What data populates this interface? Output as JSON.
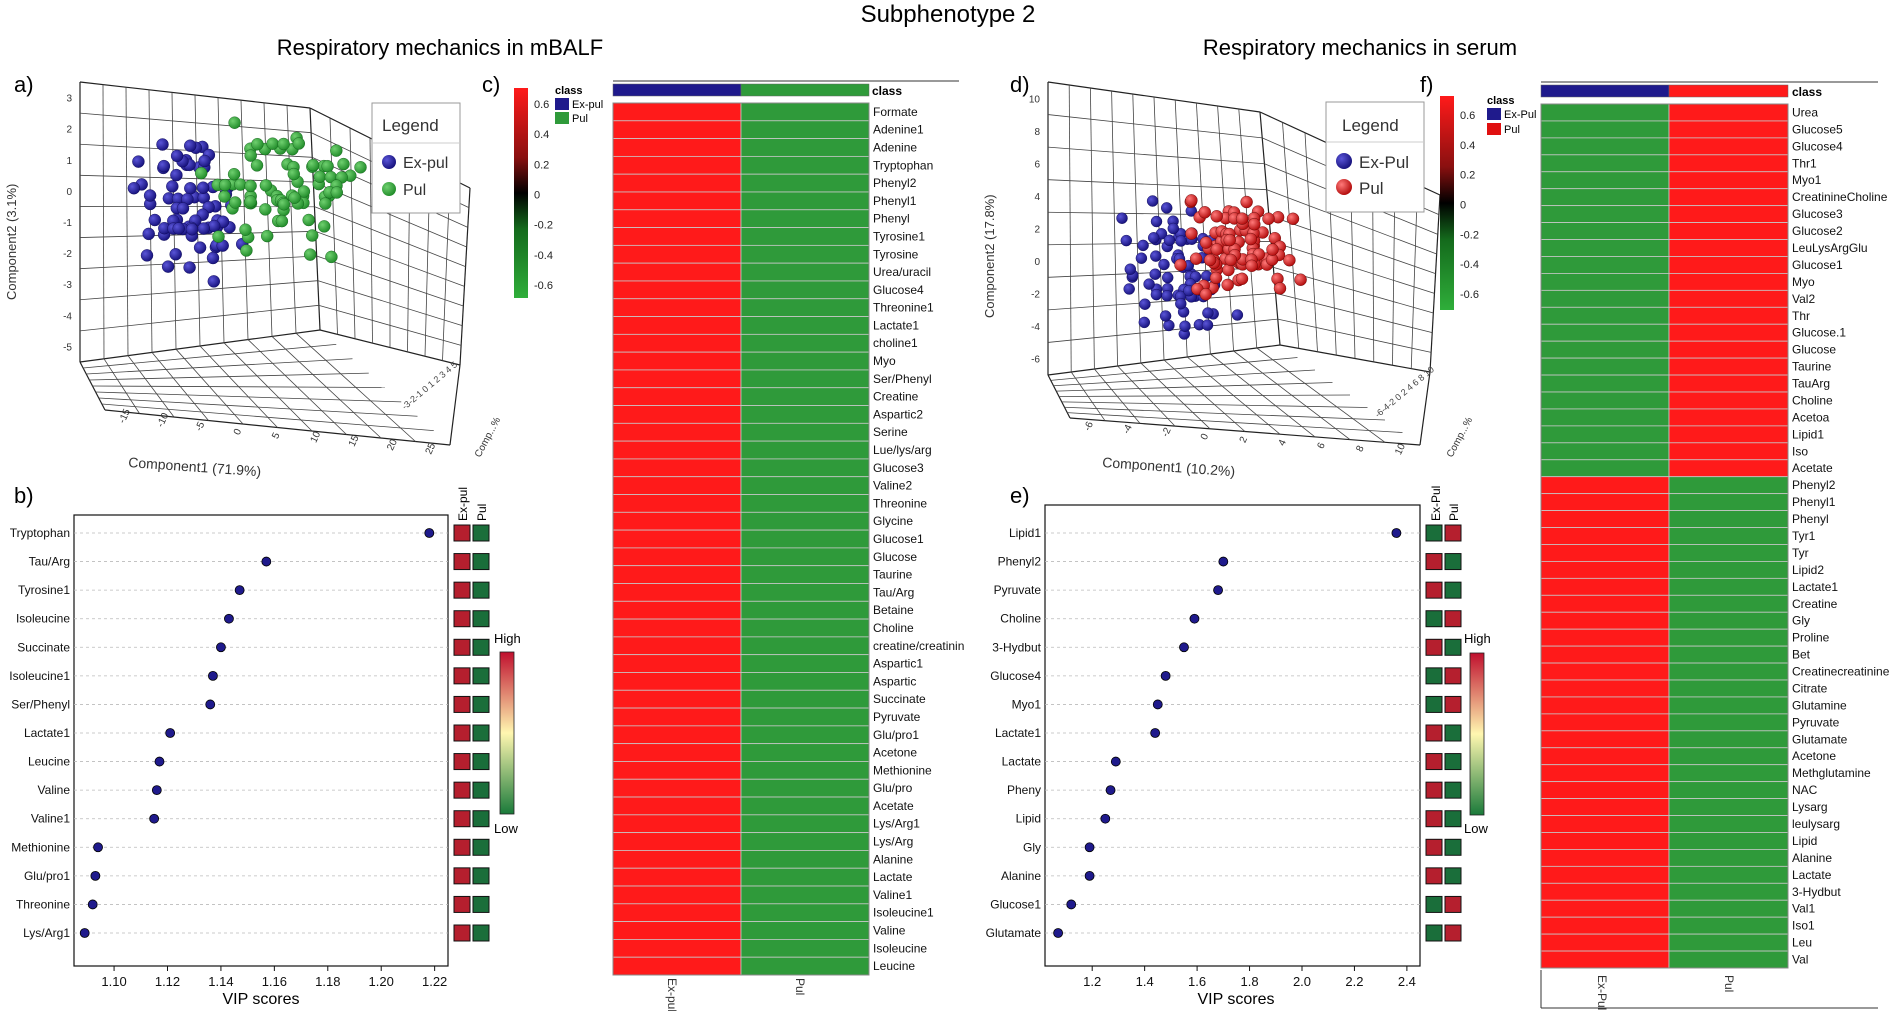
{
  "title": "Subphenotype 2",
  "section_left": "Respiratory mechanics in mBALF",
  "section_right": "Respiratory mechanics in serum",
  "panel_letters": [
    "a)",
    "b)",
    "c)",
    "d)",
    "e)",
    "f)"
  ],
  "colors": {
    "expul": "#1f1a8c",
    "pul_green": "#2a9d34",
    "pul_red": "#e01010",
    "heat_red": "#ff1a1a",
    "heat_green": "#2f9a3a",
    "box_red": "#b51f2e",
    "box_green": "#1a6e3a"
  },
  "pca_a": {
    "legend_title": "Legend",
    "legend_items": [
      "Ex-pul",
      "Pul"
    ],
    "xlabel": "Component1 (71.9%)",
    "ylabel": "Component2 (3.1%)",
    "zlabel": "Comp...%",
    "yticks": [
      "3",
      "2",
      "1",
      "0",
      "-1",
      "-2",
      "-3",
      "-4",
      "-5"
    ],
    "xticks": [
      "-15",
      "-10",
      "-5",
      "0",
      "5",
      "10",
      "15",
      "20",
      "25"
    ],
    "zticks": "-3-2-1 0 1 2 3 4 5"
  },
  "pca_d": {
    "legend_title": "Legend",
    "legend_items": [
      "Ex-Pul",
      "Pul"
    ],
    "xlabel": "Component1 (10.2%)",
    "ylabel": "Component2 (17.8%)",
    "zlabel": "Comp...%",
    "yticks": [
      "10",
      "8",
      "6",
      "4",
      "2",
      "0",
      "-2",
      "-4",
      "-6"
    ],
    "xticks": [
      "-6",
      "-4",
      "-2",
      "0",
      "2",
      "4",
      "6",
      "8",
      "10"
    ],
    "zticks": "-6-4-2 0 2 4 6 8 10"
  },
  "chart_data": [
    {
      "panel": "b",
      "type": "scatter",
      "xlabel": "VIP scores",
      "xlim": [
        1.085,
        1.225
      ],
      "xticks": [
        "1.10",
        "1.12",
        "1.14",
        "1.16",
        "1.18",
        "1.20",
        "1.22"
      ],
      "xtick_values": [
        1.1,
        1.12,
        1.14,
        1.16,
        1.18,
        1.2,
        1.22
      ],
      "categories": [
        "Tryptophan",
        "Tau/Arg",
        "Tyrosine1",
        "Isoleucine",
        "Succinate",
        "Isoleucine1",
        "Ser/Phenyl",
        "Lactate1",
        "Leucine",
        "Valine",
        "Valine1",
        "Methionine",
        "Glu/pro1",
        "Threonine",
        "Lys/Arg1"
      ],
      "values": [
        1.218,
        1.157,
        1.147,
        1.143,
        1.14,
        1.137,
        1.136,
        1.121,
        1.117,
        1.116,
        1.115,
        1.094,
        1.093,
        1.092,
        1.089
      ],
      "class_labels": [
        "Ex-pul",
        "Pul"
      ],
      "class_colors": [
        [
          "red",
          "green"
        ],
        [
          "red",
          "green"
        ],
        [
          "red",
          "green"
        ],
        [
          "red",
          "green"
        ],
        [
          "red",
          "green"
        ],
        [
          "red",
          "green"
        ],
        [
          "red",
          "green"
        ],
        [
          "red",
          "green"
        ],
        [
          "red",
          "green"
        ],
        [
          "red",
          "green"
        ],
        [
          "red",
          "green"
        ],
        [
          "red",
          "green"
        ],
        [
          "red",
          "green"
        ],
        [
          "red",
          "green"
        ],
        [
          "red",
          "green"
        ]
      ],
      "scale_high": "High",
      "scale_low": "Low"
    },
    {
      "panel": "e",
      "type": "scatter",
      "xlabel": "VIP scores",
      "xlim": [
        1.02,
        2.45
      ],
      "xticks": [
        "1.2",
        "1.4",
        "1.6",
        "1.8",
        "2.0",
        "2.2",
        "2.4"
      ],
      "xtick_values": [
        1.2,
        1.4,
        1.6,
        1.8,
        2.0,
        2.2,
        2.4
      ],
      "categories": [
        "Lipid1",
        "Phenyl2",
        "Pyruvate",
        "Choline",
        "3-Hydbut",
        "Glucose4",
        "Myo1",
        "Lactate1",
        "Lactate",
        "Pheny",
        "Lipid",
        "Gly",
        "Alanine",
        "Glucose1",
        "Glutamate"
      ],
      "values": [
        2.36,
        1.7,
        1.68,
        1.59,
        1.55,
        1.48,
        1.45,
        1.44,
        1.29,
        1.27,
        1.25,
        1.19,
        1.19,
        1.12,
        1.07
      ],
      "class_labels": [
        "Ex-Pul",
        "Pul"
      ],
      "class_colors": [
        [
          "green",
          "red"
        ],
        [
          "red",
          "green"
        ],
        [
          "red",
          "green"
        ],
        [
          "green",
          "red"
        ],
        [
          "red",
          "green"
        ],
        [
          "green",
          "red"
        ],
        [
          "green",
          "red"
        ],
        [
          "red",
          "green"
        ],
        [
          "red",
          "green"
        ],
        [
          "red",
          "green"
        ],
        [
          "red",
          "green"
        ],
        [
          "red",
          "green"
        ],
        [
          "red",
          "green"
        ],
        [
          "green",
          "red"
        ],
        [
          "green",
          "red"
        ]
      ],
      "scale_high": "High",
      "scale_low": "Low"
    },
    {
      "panel": "c",
      "type": "heatmap",
      "class_header": "class",
      "column_labels": [
        "Ex-pul",
        "Pul"
      ],
      "legend_title": "class",
      "legend_items": [
        "Ex-pul",
        "Pul"
      ],
      "scale_ticks": [
        "0.6",
        "0.4",
        "0.2",
        "0",
        "-0.2",
        "-0.4",
        "-0.6"
      ],
      "rows": [
        "Formate",
        "Adenine1",
        "Adenine",
        "Tryptophan",
        "Phenyl2",
        "Phenyl1",
        "Phenyl",
        "Tyrosine1",
        "Tyrosine",
        "Urea/uracil",
        "Glucose4",
        "Threonine1",
        "Lactate1",
        "choline1",
        "Myo",
        "Ser/Phenyl",
        "Creatine",
        "Aspartic2",
        "Serine",
        "Lue/lys/arg",
        "Glucose3",
        "Valine2",
        "Threonine",
        "Glycine",
        "Glucose1",
        "Glucose",
        "Taurine",
        "Tau/Arg",
        "Betaine",
        "Choline",
        "creatine/creatinin",
        "Aspartic1",
        "Aspartic",
        "Succinate",
        "Pyruvate",
        "Glu/pro1",
        "Acetone",
        "Methionine",
        "Glu/pro",
        "Acetate",
        "Lys/Arg1",
        "Lys/Arg",
        "Alanine",
        "Lactate",
        "Valine1",
        "Isoleucine1",
        "Valine",
        "Isoleucine",
        "Leucine"
      ],
      "values_ex_pul": [
        0.6,
        0.6,
        0.6,
        0.6,
        0.6,
        0.6,
        0.6,
        0.6,
        0.6,
        0.6,
        0.6,
        0.6,
        0.6,
        0.6,
        0.6,
        0.6,
        0.6,
        0.6,
        0.6,
        0.6,
        0.6,
        0.6,
        0.6,
        0.6,
        0.6,
        0.6,
        0.6,
        0.6,
        0.6,
        0.6,
        0.6,
        0.6,
        0.6,
        0.6,
        0.6,
        0.6,
        0.6,
        0.6,
        0.6,
        0.6,
        0.6,
        0.6,
        0.6,
        0.6,
        0.6,
        0.6,
        0.6,
        0.6,
        0.6
      ],
      "values_pul": [
        -0.6,
        -0.6,
        -0.6,
        -0.6,
        -0.6,
        -0.6,
        -0.6,
        -0.6,
        -0.6,
        -0.6,
        -0.6,
        -0.6,
        -0.6,
        -0.6,
        -0.6,
        -0.6,
        -0.6,
        -0.6,
        -0.6,
        -0.6,
        -0.6,
        -0.6,
        -0.6,
        -0.6,
        -0.6,
        -0.6,
        -0.6,
        -0.6,
        -0.6,
        -0.6,
        -0.6,
        -0.6,
        -0.6,
        -0.6,
        -0.6,
        -0.6,
        -0.6,
        -0.6,
        -0.6,
        -0.6,
        -0.6,
        -0.6,
        -0.6,
        -0.6,
        -0.6,
        -0.6,
        -0.6,
        -0.6,
        -0.6
      ]
    },
    {
      "panel": "f",
      "type": "heatmap",
      "class_header": "class",
      "column_labels": [
        "Ex-Pul",
        "Pul"
      ],
      "legend_title": "class",
      "legend_items": [
        "Ex-Pul",
        "Pul"
      ],
      "scale_ticks": [
        "0.6",
        "0.4",
        "0.2",
        "0",
        "-0.2",
        "-0.4",
        "-0.6"
      ],
      "rows": [
        "Urea",
        "Glucose5",
        "Glucose4",
        "Thr1",
        "Myo1",
        "CreatinineCholine",
        "Glucose3",
        "Glucose2",
        "LeuLysArgGlu",
        "Glucose1",
        "Myo",
        "Val2",
        "Thr",
        "Glucose.1",
        "Glucose",
        "Taurine",
        "TauArg",
        "Choline",
        "Acetoa",
        "Lipid1",
        "Iso",
        "Acetate",
        "Phenyl2",
        "Phenyl1",
        "Phenyl",
        "Tyr1",
        "Tyr",
        "Lipid2",
        "Lactate1",
        "Creatine",
        "Gly",
        "Proline",
        "Bet",
        "Creatinecreatinine",
        "Citrate",
        "Glutamine",
        "Pyruvate",
        "Glutamate",
        "Acetone",
        "Methglutamine",
        "NAC",
        "Lysarg",
        "leulysarg",
        "Lipid",
        "Alanine",
        "Lactate",
        "3-Hydbut",
        "Val1",
        "Iso1",
        "Leu",
        "Val"
      ],
      "values_ex_pul": [
        -0.6,
        -0.6,
        -0.6,
        -0.6,
        -0.6,
        -0.6,
        -0.6,
        -0.6,
        -0.6,
        -0.6,
        -0.6,
        -0.6,
        -0.6,
        -0.6,
        -0.6,
        -0.6,
        -0.6,
        -0.6,
        -0.6,
        -0.6,
        -0.6,
        -0.6,
        0.6,
        0.6,
        0.6,
        0.6,
        0.6,
        0.6,
        0.6,
        0.6,
        0.6,
        0.6,
        0.6,
        0.6,
        0.6,
        0.6,
        0.6,
        0.6,
        0.6,
        0.6,
        0.6,
        0.6,
        0.6,
        0.6,
        0.6,
        0.6,
        0.6,
        0.6,
        0.6,
        0.6,
        0.6
      ],
      "values_pul": [
        0.6,
        0.6,
        0.6,
        0.6,
        0.6,
        0.6,
        0.6,
        0.6,
        0.6,
        0.6,
        0.6,
        0.6,
        0.6,
        0.6,
        0.6,
        0.6,
        0.6,
        0.6,
        0.6,
        0.6,
        0.6,
        0.6,
        -0.6,
        -0.6,
        -0.6,
        -0.6,
        -0.6,
        -0.6,
        -0.6,
        -0.6,
        -0.6,
        -0.6,
        -0.6,
        -0.6,
        -0.6,
        -0.6,
        -0.6,
        -0.6,
        -0.6,
        -0.6,
        -0.6,
        -0.6,
        -0.6,
        -0.6,
        -0.6,
        -0.6,
        -0.6,
        -0.6,
        -0.6,
        -0.6,
        -0.6
      ]
    }
  ]
}
